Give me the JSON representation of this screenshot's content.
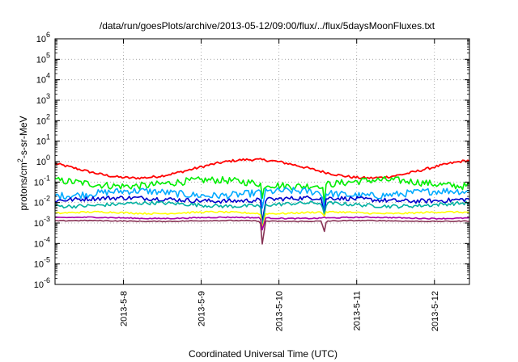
{
  "chart_data": {
    "type": "line",
    "title": "/data/run/goesPlots/archive/2013-05-12/09:00/flux/../flux/5daysMoonFluxes.txt",
    "xlabel": "Coordinated Universal Time (UTC)",
    "ylabel": "protons/cm2-s-sr-MeV",
    "ylabel_parts": {
      "base": "protons/cm",
      "sup": "2",
      "rest": "-s-sr-MeV"
    },
    "yscale": "log",
    "ylim_exp": [
      -6,
      6
    ],
    "y_ticks": [
      {
        "base": "10",
        "exp": "-6"
      },
      {
        "base": "10",
        "exp": "-5"
      },
      {
        "base": "10",
        "exp": "-4"
      },
      {
        "base": "10",
        "exp": "-3"
      },
      {
        "base": "10",
        "exp": "-2"
      },
      {
        "base": "10",
        "exp": "-1"
      },
      {
        "base": "10",
        "exp": "0"
      },
      {
        "base": "10",
        "exp": "1"
      },
      {
        "base": "10",
        "exp": "2"
      },
      {
        "base": "10",
        "exp": "3"
      },
      {
        "base": "10",
        "exp": "4"
      },
      {
        "base": "10",
        "exp": "5"
      },
      {
        "base": "10",
        "exp": "6"
      }
    ],
    "xlim_days": [
      7.12,
      12.45
    ],
    "x_ticks": [
      {
        "day": 8,
        "label": "2013-5-8"
      },
      {
        "day": 9,
        "label": "2013-5-9"
      },
      {
        "day": 10,
        "label": "2013-5-10"
      },
      {
        "day": 11,
        "label": "2013-5-11"
      },
      {
        "day": 12,
        "label": "2013-5-12"
      }
    ],
    "grid": true,
    "series": [
      {
        "color": "#ff0000",
        "level_exp": -0.35,
        "amp": 0.45,
        "noise": 0.12,
        "period": 3.0,
        "phase": 0.2
      },
      {
        "color": "#00ee00",
        "level_exp": -1.05,
        "amp": 0.15,
        "noise": 0.35,
        "period": 2.2,
        "phase": 0.6
      },
      {
        "color": "#00aaff",
        "level_exp": -1.55,
        "amp": 0.12,
        "noise": 0.35,
        "period": 2.0,
        "phase": 1.1
      },
      {
        "color": "#0000cc",
        "level_exp": -1.85,
        "amp": 0.08,
        "noise": 0.22,
        "period": 2.5,
        "phase": 0.3
      },
      {
        "color": "#00b0a0",
        "level_exp": -2.1,
        "amp": 0.08,
        "noise": 0.18,
        "period": 2.1,
        "phase": 1.7
      },
      {
        "color": "#ffff00",
        "level_exp": -2.5,
        "amp": 0.04,
        "noise": 0.08,
        "period": 1.5,
        "phase": 0.9
      },
      {
        "color": "#aa00aa",
        "level_exp": -2.75,
        "amp": 0.03,
        "noise": 0.05,
        "period": 1.8,
        "phase": 0.4
      },
      {
        "color": "#883355",
        "level_exp": -2.9,
        "amp": 0.02,
        "noise": 0.04,
        "period": 1.8,
        "phase": 0.5
      }
    ],
    "dips": [
      {
        "day": 9.79,
        "depth_exp": -4.25
      },
      {
        "day": 10.58,
        "depth_exp": -3.5
      }
    ]
  }
}
